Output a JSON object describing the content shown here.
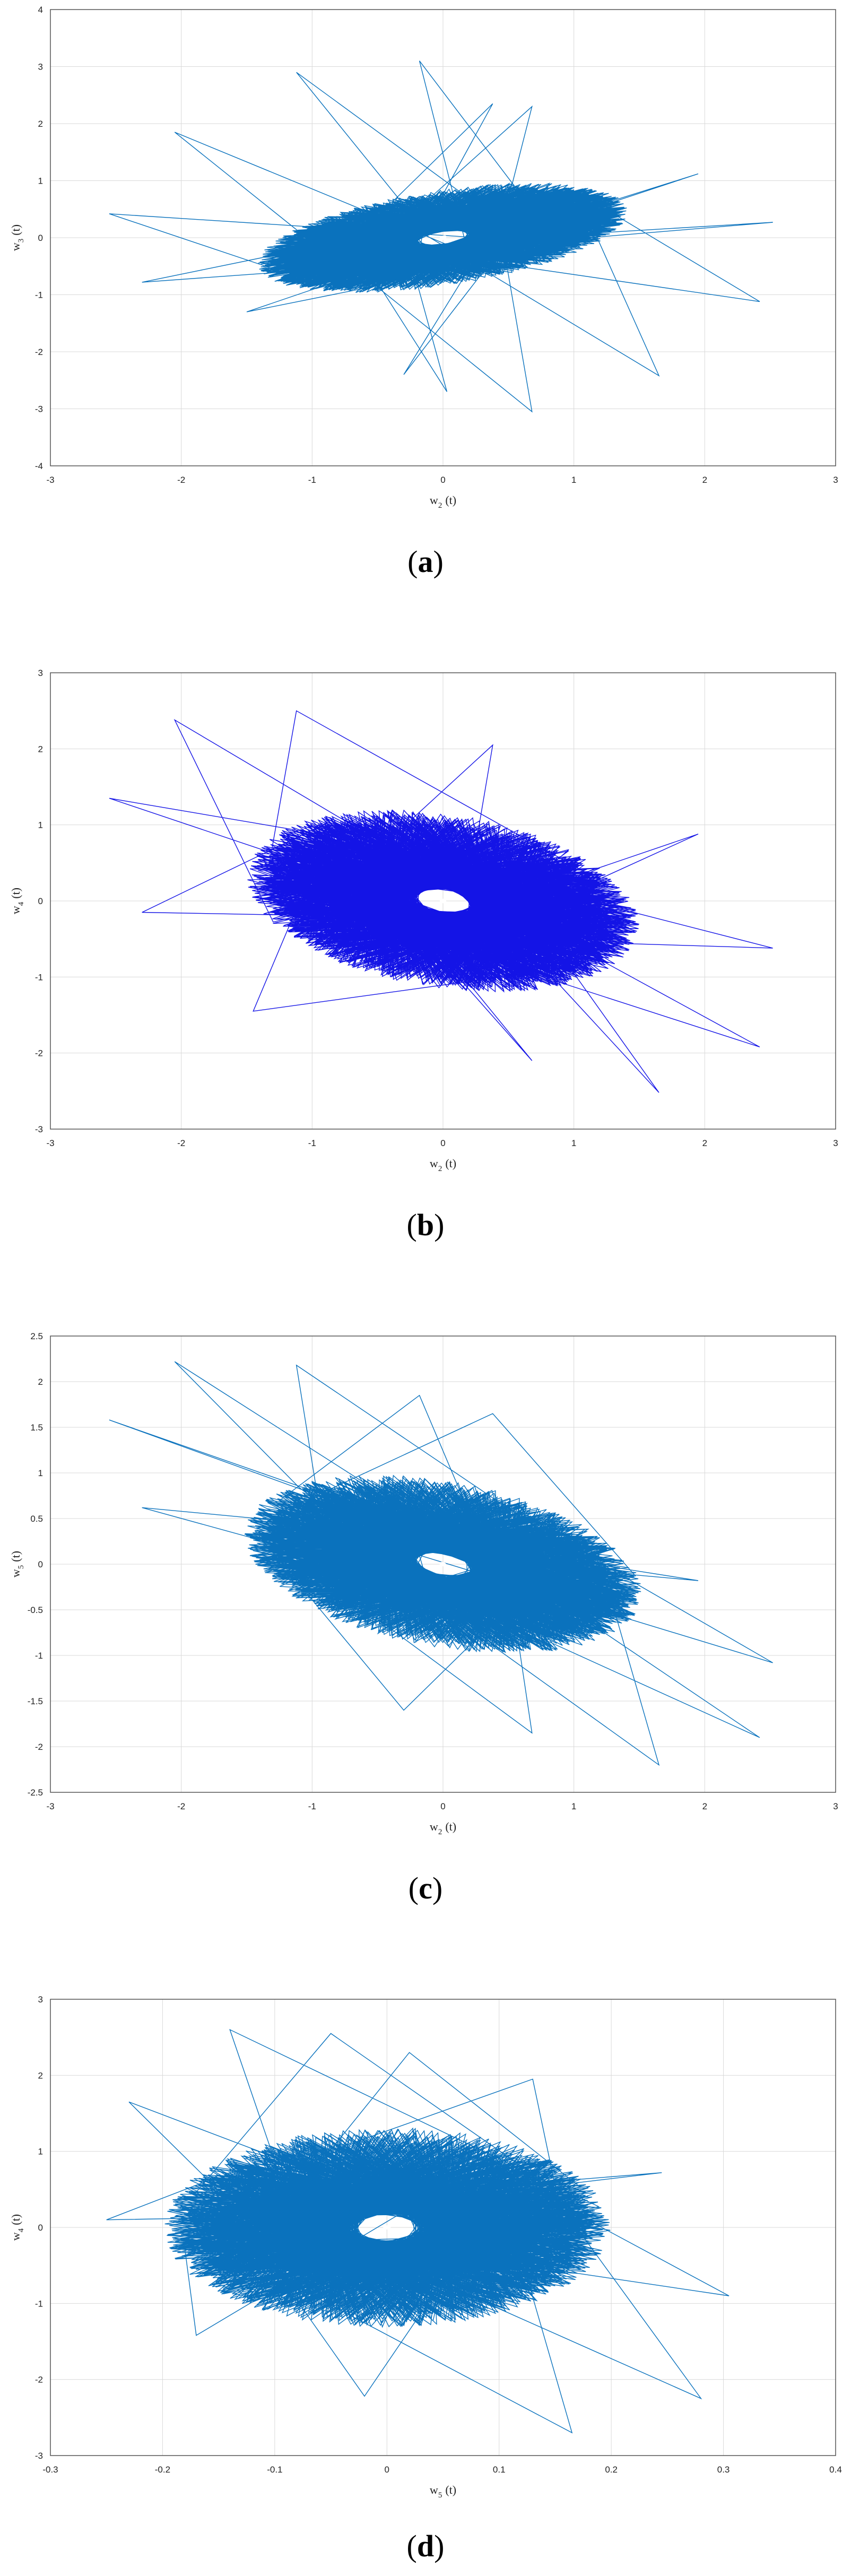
{
  "chart_data": [
    {
      "type": "line",
      "caption": "(a)",
      "xlabel": "w2(t)",
      "xlabel_main": "w",
      "xlabel_sub": "2",
      "xlabel_tail": "(t)",
      "ylabel_main": "w",
      "ylabel_sub": "3",
      "ylabel_tail": "(t)",
      "xlim": [
        -3,
        3
      ],
      "ylim": [
        -4,
        4
      ],
      "xticks": [
        "-3",
        "-2",
        "-1",
        "0",
        "1",
        "2",
        "3"
      ],
      "yticks": [
        "-4",
        "-3",
        "-2",
        "-1",
        "0",
        "1",
        "2",
        "3",
        "4"
      ],
      "grid": true,
      "color": "#0a72bd",
      "series": [
        {
          "cloud": {
            "cx": 0.0,
            "cy": 0.0,
            "a": 1.45,
            "b": 0.75,
            "angle_deg": 25
          },
          "spikes": [
            [
              -2.55,
              0.42
            ],
            [
              -2.05,
              1.85
            ],
            [
              -1.12,
              2.9
            ],
            [
              -0.18,
              3.1
            ],
            [
              0.38,
              2.35
            ],
            [
              0.68,
              2.3
            ],
            [
              1.95,
              1.12
            ],
            [
              2.52,
              0.27
            ],
            [
              2.42,
              -1.12
            ],
            [
              1.65,
              -2.42
            ],
            [
              0.68,
              -3.05
            ],
            [
              0.03,
              -2.7
            ],
            [
              -0.3,
              -2.4
            ],
            [
              -1.5,
              -1.3
            ],
            [
              -2.3,
              -0.78
            ]
          ]
        }
      ]
    },
    {
      "type": "line",
      "caption": "(b)",
      "xlabel_main": "w",
      "xlabel_sub": "2",
      "xlabel_tail": "(t)",
      "ylabel_main": "w",
      "ylabel_sub": "4",
      "ylabel_tail": "(t)",
      "xlim": [
        -3,
        3
      ],
      "ylim": [
        -3,
        3
      ],
      "xticks": [
        "-3",
        "-2",
        "-1",
        "0",
        "1",
        "2",
        "3"
      ],
      "yticks": [
        "-3",
        "-2",
        "-1",
        "0",
        "1",
        "2",
        "3"
      ],
      "grid": true,
      "color": "#1414e6",
      "series": [
        {
          "cloud": {
            "cx": 0.0,
            "cy": 0.0,
            "a": 1.5,
            "b": 1.05,
            "angle_deg": -25
          },
          "spikes": [
            [
              -2.55,
              1.35
            ],
            [
              -2.05,
              2.38
            ],
            [
              -1.12,
              2.5
            ],
            [
              0.38,
              2.05
            ],
            [
              1.95,
              0.88
            ],
            [
              2.52,
              -0.62
            ],
            [
              2.42,
              -1.92
            ],
            [
              1.65,
              -2.52
            ],
            [
              0.68,
              -2.1
            ],
            [
              -1.45,
              -1.45
            ],
            [
              -2.3,
              -0.15
            ]
          ]
        }
      ]
    },
    {
      "type": "line",
      "caption": "(c)",
      "xlabel_main": "w",
      "xlabel_sub": "2",
      "xlabel_tail": "(t)",
      "ylabel_main": "w",
      "ylabel_sub": "5",
      "ylabel_tail": "(t)",
      "xlim": [
        -3,
        3
      ],
      "ylim": [
        -2.5,
        2.5
      ],
      "xticks": [
        "-3",
        "-2",
        "-1",
        "0",
        "1",
        "2",
        "3"
      ],
      "yticks": [
        "-2.5",
        "-2",
        "-1.5",
        "-1",
        "-0.5",
        "0",
        "0.5",
        "1",
        "1.5",
        "2",
        "2.5"
      ],
      "grid": true,
      "color": "#0a72bd",
      "series": [
        {
          "cloud": {
            "cx": 0.0,
            "cy": 0.0,
            "a": 1.5,
            "b": 0.85,
            "angle_deg": -18
          },
          "spikes": [
            [
              -2.55,
              1.58
            ],
            [
              -2.05,
              2.22
            ],
            [
              -1.12,
              2.18
            ],
            [
              -0.18,
              1.85
            ],
            [
              0.38,
              1.65
            ],
            [
              1.95,
              -0.18
            ],
            [
              2.52,
              -1.08
            ],
            [
              2.42,
              -1.9
            ],
            [
              1.65,
              -2.2
            ],
            [
              0.68,
              -1.85
            ],
            [
              -0.3,
              -1.6
            ],
            [
              -2.3,
              0.62
            ]
          ]
        }
      ]
    },
    {
      "type": "line",
      "caption": "(d)",
      "xlabel_main": "w",
      "xlabel_sub": "5",
      "xlabel_tail": "(t)",
      "ylabel_main": "w",
      "ylabel_sub": "4",
      "ylabel_tail": "(t)",
      "xlim": [
        -0.3,
        0.4
      ],
      "ylim": [
        -3,
        3
      ],
      "xticks": [
        "-0.3",
        "-0.2",
        "-0.1",
        "0",
        "0.1",
        "0.2",
        "0.3",
        "0.4"
      ],
      "yticks": [
        "-3",
        "-2",
        "-1",
        "0",
        "1",
        "2",
        "3"
      ],
      "grid": true,
      "color": "#0a72bd",
      "series": [
        {
          "cloud": {
            "cx": 0.0,
            "cy": 0.0,
            "a": 0.19,
            "b": 1.25,
            "angle_deg": 0
          },
          "spikes": [
            [
              -0.25,
              0.1
            ],
            [
              -0.23,
              1.65
            ],
            [
              -0.14,
              2.6
            ],
            [
              -0.05,
              2.55
            ],
            [
              0.02,
              2.3
            ],
            [
              0.13,
              1.95
            ],
            [
              0.245,
              0.72
            ],
            [
              0.305,
              -0.9
            ],
            [
              0.28,
              -2.25
            ],
            [
              0.165,
              -2.7
            ],
            [
              -0.02,
              -2.22
            ],
            [
              -0.17,
              -1.42
            ]
          ]
        }
      ]
    }
  ]
}
